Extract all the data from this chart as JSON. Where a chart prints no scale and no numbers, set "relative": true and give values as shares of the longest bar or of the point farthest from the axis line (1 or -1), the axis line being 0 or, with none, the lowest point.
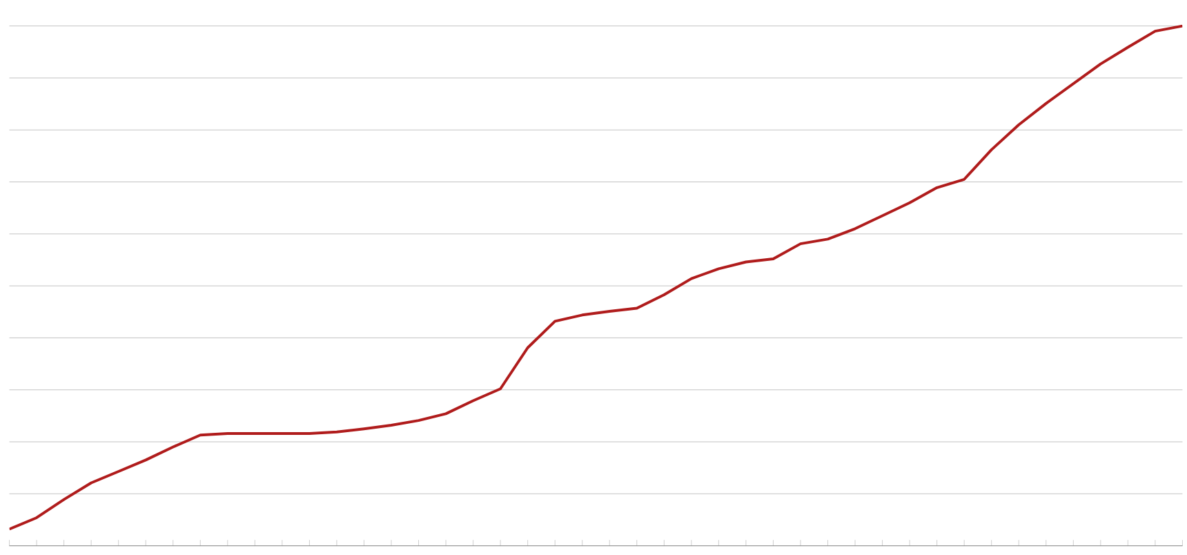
{
  "chart_data": {
    "type": "line",
    "relative": true,
    "grid": "y",
    "categories": [
      null,
      null,
      null,
      null,
      null,
      null,
      null,
      null,
      null,
      null,
      null,
      null,
      null,
      null,
      null,
      null,
      null,
      null,
      null,
      null,
      null,
      null,
      null,
      null,
      null,
      null,
      null,
      null,
      null,
      null,
      null,
      null,
      null,
      null,
      null,
      null,
      null,
      null,
      null,
      null,
      null,
      null,
      null,
      null
    ],
    "series": [
      {
        "color": "#b01c1c",
        "values": [
          0.032,
          0.054,
          0.089,
          0.121,
          0.143,
          0.165,
          0.19,
          0.213,
          0.216,
          0.216,
          0.216,
          0.216,
          0.219,
          0.225,
          0.232,
          0.241,
          0.254,
          0.279,
          0.302,
          0.381,
          0.432,
          0.444,
          0.451,
          0.457,
          0.483,
          0.514,
          0.533,
          0.546,
          0.552,
          0.581,
          0.59,
          0.61,
          0.635,
          0.66,
          0.689,
          0.705,
          0.762,
          0.81,
          0.851,
          0.889,
          0.927,
          0.959,
          0.99,
          1
        ]
      }
    ]
  }
}
